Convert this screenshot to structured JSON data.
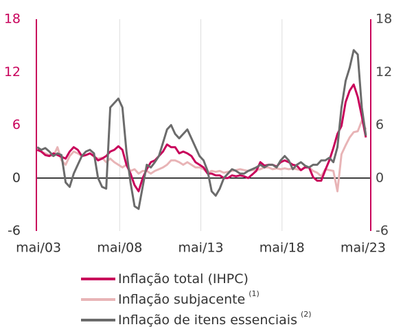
{
  "chart_data": {
    "type": "line",
    "x": [
      2003.25,
      2003.5,
      2003.75,
      2004,
      2004.25,
      2004.5,
      2004.75,
      2005,
      2005.25,
      2005.5,
      2005.75,
      2006,
      2006.25,
      2006.5,
      2006.75,
      2007,
      2007.25,
      2007.5,
      2007.75,
      2008,
      2008.25,
      2008.5,
      2008.75,
      2009,
      2009.25,
      2009.5,
      2009.75,
      2010,
      2010.25,
      2010.5,
      2010.75,
      2011,
      2011.25,
      2011.5,
      2011.75,
      2012,
      2012.25,
      2012.5,
      2012.75,
      2013,
      2013.25,
      2013.5,
      2013.75,
      2014,
      2014.25,
      2014.5,
      2014.75,
      2015,
      2015.25,
      2015.5,
      2015.75,
      2016,
      2016.25,
      2016.5,
      2016.75,
      2017,
      2017.25,
      2017.5,
      2017.75,
      2018,
      2018.25,
      2018.5,
      2018.75,
      2019,
      2019.25,
      2019.5,
      2019.75,
      2020,
      2020.25,
      2020.5,
      2020.75,
      2021,
      2021.25,
      2021.5,
      2021.75,
      2022,
      2022.25,
      2022.5,
      2022.75,
      2023,
      2023.25,
      2023.5
    ],
    "series": [
      {
        "name": "Inflação total (IHPC)",
        "color": "#c8005a",
        "values": [
          3.2,
          3.0,
          2.6,
          2.5,
          2.8,
          2.6,
          2.4,
          2.2,
          3.0,
          3.5,
          3.2,
          2.5,
          2.6,
          2.8,
          2.5,
          2.0,
          2.2,
          2.5,
          3.0,
          3.2,
          3.6,
          3.2,
          1.5,
          0.5,
          -0.8,
          -1.5,
          0.0,
          1.0,
          1.8,
          2.0,
          2.5,
          3.0,
          3.8,
          3.5,
          3.5,
          2.8,
          3.0,
          2.8,
          2.5,
          1.8,
          1.5,
          1.2,
          0.5,
          0.5,
          0.3,
          0.3,
          0.0,
          0.0,
          0.3,
          0.2,
          0.3,
          0.2,
          0.0,
          0.4,
          0.8,
          1.8,
          1.4,
          1.5,
          1.5,
          1.3,
          1.8,
          2.0,
          1.8,
          1.5,
          1.4,
          0.9,
          1.2,
          1.2,
          0.1,
          -0.3,
          -0.3,
          0.9,
          2.0,
          3.4,
          5.0,
          5.9,
          8.6,
          9.9,
          10.6,
          9.2,
          7.0,
          4.6
        ]
      },
      {
        "name": "Inflação subjacente",
        "note": "(1)",
        "color": "#e8b4b6",
        "values": [
          3.5,
          3.0,
          2.8,
          2.6,
          2.5,
          3.5,
          2.0,
          1.5,
          2.5,
          3.0,
          2.8,
          2.5,
          2.6,
          2.8,
          2.4,
          2.2,
          2.3,
          1.8,
          2.2,
          1.8,
          1.5,
          1.2,
          1.5,
          0.8,
          1.0,
          0.5,
          0.8,
          0.8,
          0.5,
          0.8,
          1.0,
          1.2,
          1.5,
          2.0,
          2.0,
          1.8,
          1.5,
          1.8,
          1.5,
          1.2,
          1.2,
          1.0,
          0.6,
          0.8,
          0.7,
          0.8,
          0.6,
          0.7,
          0.8,
          0.9,
          1.0,
          0.9,
          0.8,
          0.9,
          0.9,
          1.0,
          1.2,
          1.2,
          1.0,
          1.1,
          1.0,
          1.1,
          1.0,
          1.1,
          1.0,
          0.9,
          1.3,
          1.2,
          0.8,
          0.6,
          0.2,
          1.0,
          0.9,
          0.8,
          -1.5,
          2.7,
          3.7,
          4.6,
          5.2,
          5.3,
          6.5,
          5.5
        ]
      },
      {
        "name": "Inflação de itens essenciais",
        "note": "(2)",
        "color": "#6b6b6b",
        "values": [
          3.5,
          3.2,
          3.4,
          3.0,
          2.5,
          2.8,
          2.6,
          -0.5,
          -1.0,
          0.5,
          1.5,
          2.5,
          3.0,
          3.2,
          2.8,
          0.0,
          -1.0,
          -1.2,
          8.0,
          8.5,
          9.0,
          8.0,
          3.0,
          -0.5,
          -3.2,
          -3.5,
          -1.0,
          1.5,
          1.2,
          1.8,
          2.5,
          4.0,
          5.5,
          6.0,
          5.0,
          4.5,
          5.0,
          5.5,
          4.5,
          3.5,
          2.5,
          2.0,
          0.8,
          -1.5,
          -2.0,
          -1.2,
          0.0,
          0.5,
          1.0,
          0.8,
          0.5,
          0.5,
          0.8,
          1.0,
          1.2,
          1.5,
          1.2,
          1.5,
          1.5,
          1.2,
          2.0,
          2.5,
          2.0,
          1.0,
          1.5,
          1.8,
          1.4,
          1.2,
          1.5,
          1.5,
          2.0,
          2.0,
          2.3,
          1.8,
          3.5,
          8.0,
          11.0,
          12.5,
          14.5,
          14.0,
          8.0,
          4.8
        ]
      }
    ],
    "xlim": [
      2003.2,
      2023.8
    ],
    "xticks": [
      {
        "value": 2003.333,
        "label": "mai/03"
      },
      {
        "value": 2008.333,
        "label": "mai/08"
      },
      {
        "value": 2013.333,
        "label": "mai/13"
      },
      {
        "value": 2018.333,
        "label": "mai/18"
      },
      {
        "value": 2023.333,
        "label": "mai/23"
      }
    ],
    "ylim": [
      -6,
      18
    ],
    "yticks": [
      -6,
      0,
      6,
      12,
      18
    ],
    "y2lim": [
      -6,
      18
    ],
    "y2ticks": [
      -6,
      0,
      6,
      12,
      18
    ],
    "grid": true
  }
}
